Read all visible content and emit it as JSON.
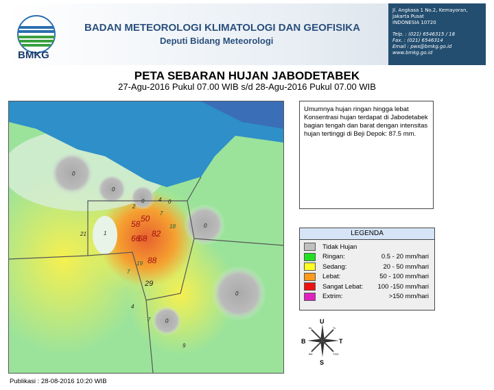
{
  "header": {
    "logo_text": "BMKG",
    "org": "BADAN METEOROLOGI KLIMATOLOGI DAN GEOFISIKA",
    "sub": "Deputi Bidang Meteorologi",
    "address": [
      "Jl. Angkasa 1 No.2, Kemayoran,",
      "Jakarta Pusat",
      "INDONESIA 10720"
    ],
    "contact": [
      "Telp.  : (021) 6546315 / 18",
      "Fax.   : (021) 6546314",
      "Email : pws@bmkg.go.id",
      "www.bmkg.go.id"
    ]
  },
  "title": "PETA SEBARAN HUJAN JABODETABEK",
  "subtitle": "27-Agu-2016 Pukul 07.00 WIB s/d 28-Agu-2016 Pukul 07.00 WIB",
  "description": "Umumnya hujan ringan hingga lebat Konsentrasi hujan terdapat di Jabodetabek bagian tengah dan barat dengan intensitas hujan tertinggi di Beji Depok: 87.5 mm.",
  "map_values": [
    "0",
    "0",
    "0",
    "4",
    "0",
    "2",
    "7",
    "50",
    "58",
    "82",
    "66",
    "68",
    "18",
    "0",
    "21",
    "1",
    "19",
    "7",
    "88",
    "29",
    "0",
    "4",
    "7",
    "0",
    "9"
  ],
  "legend": {
    "title": "LEGENDA",
    "items": [
      {
        "name": "Tidak Hujan",
        "range": "",
        "color": "#c0c0c0"
      },
      {
        "name": "Ringan:",
        "range": "0.5 - 20 mm/hari",
        "color": "#22e022"
      },
      {
        "name": "Sedang:",
        "range": "20 - 50 mm/hari",
        "color": "#ffff22"
      },
      {
        "name": "Lebat:",
        "range": "50 - 100 mm/hari",
        "color": "#ff9a1a"
      },
      {
        "name": "Sangat Lebat:",
        "range": "100 -150 mm/hari",
        "color": "#ee1111"
      },
      {
        "name": "Extrim:",
        "range": ">150  mm/hari",
        "color": "#e020c0"
      }
    ]
  },
  "compass": {
    "n": "U",
    "s": "S",
    "e": "T",
    "w": "B",
    "ne": "TL",
    "nw": "BL",
    "se": "TGG",
    "sw": "BD"
  },
  "published": "Publikasi : 28-08-2016 10:20 WIB"
}
